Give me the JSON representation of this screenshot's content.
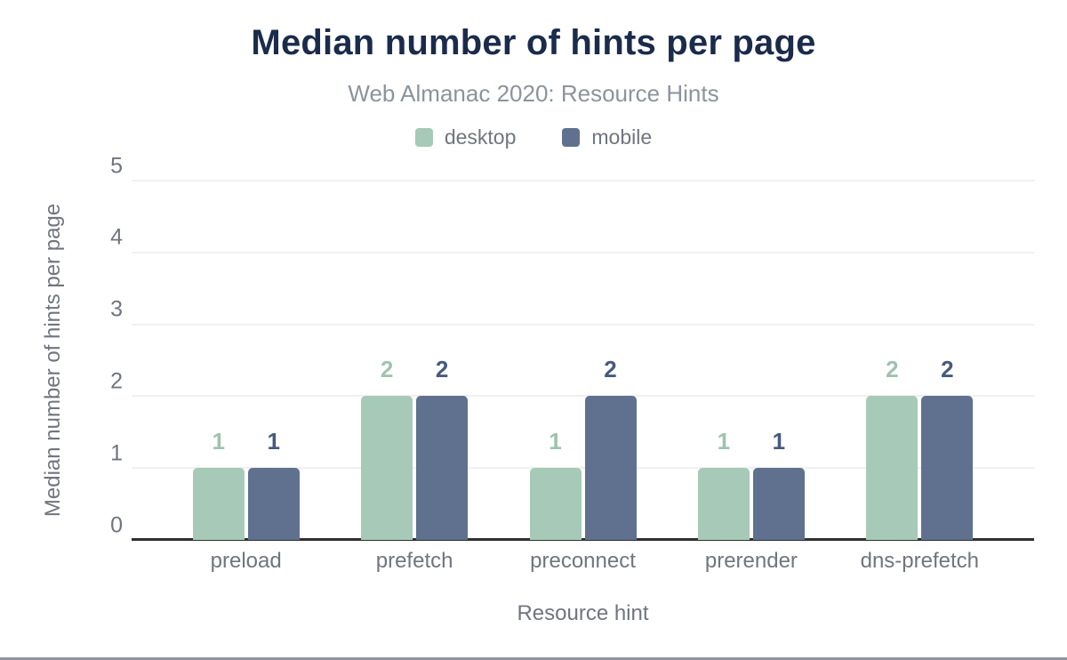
{
  "chart_data": {
    "type": "bar",
    "title": "Median number of hints per page",
    "subtitle": "Web Almanac 2020: Resource Hints",
    "xlabel": "Resource hint",
    "ylabel": "Median number of hints per page",
    "categories": [
      "preload",
      "prefetch",
      "preconnect",
      "prerender",
      "dns-prefetch"
    ],
    "series": [
      {
        "name": "desktop",
        "values": [
          1,
          2,
          1,
          1,
          2
        ],
        "color": "#a7c9b8",
        "label_color": "#9fc2b1"
      },
      {
        "name": "mobile",
        "values": [
          1,
          2,
          2,
          1,
          2
        ],
        "color": "#5f718e",
        "label_color": "#46597e"
      }
    ],
    "y_ticks": [
      0,
      1,
      2,
      3,
      4,
      5
    ],
    "ylim": [
      0,
      5
    ],
    "grid": true,
    "legend_position": "top",
    "value_labels": true
  },
  "style_colors": {
    "title": "#1b2b4b",
    "subtitle": "#8d939c",
    "axis_text": "#70757e",
    "gridline": "#f0f0f0",
    "axis_line": "#2f2f2f",
    "frame_bottom_border": "#8f959e",
    "background": "#ffffff"
  }
}
